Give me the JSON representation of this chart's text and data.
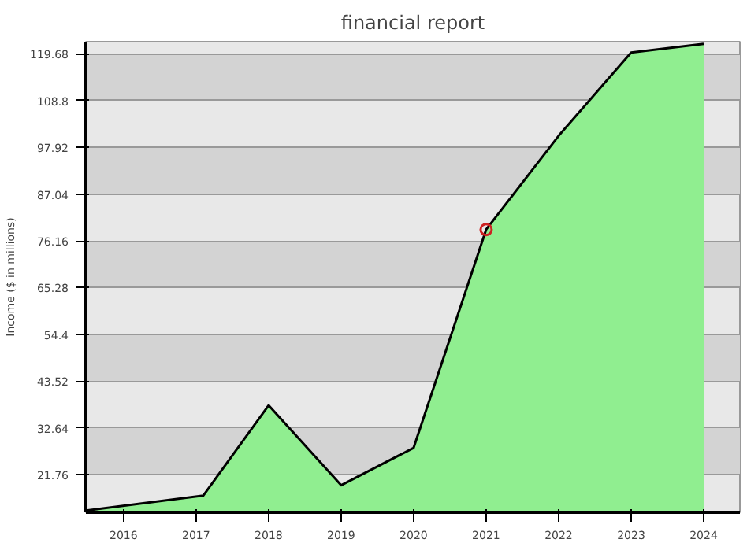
{
  "chart_data": {
    "type": "area",
    "title": "financial report",
    "ylabel": "Income ($ in millions)",
    "x": [
      2015.48,
      2017.1,
      2018,
      2019,
      2020,
      2021,
      2022,
      2023,
      2024
    ],
    "series": [
      {
        "color": "#90ee90",
        "values": [
          13.4,
          16.9,
          37.9,
          19.3,
          28,
          78.8,
          100.6,
          120,
          122
        ]
      },
      {
        "type": "scatter",
        "color": "#cc2222",
        "marker": "circle",
        "x": [
          2021
        ],
        "values": [
          78.8
        ]
      }
    ],
    "xlim": [
      2015.48,
      2024.5
    ],
    "ylim": [
      13,
      122.5
    ],
    "xticks": [
      2016,
      2017,
      2018,
      2019,
      2020,
      2021,
      2022,
      2023,
      2024
    ],
    "yticks": [
      21.76,
      32.64,
      43.52,
      54.4,
      65.28,
      76.16,
      87.04,
      97.92,
      108.8,
      119.68
    ],
    "grid": "y"
  }
}
